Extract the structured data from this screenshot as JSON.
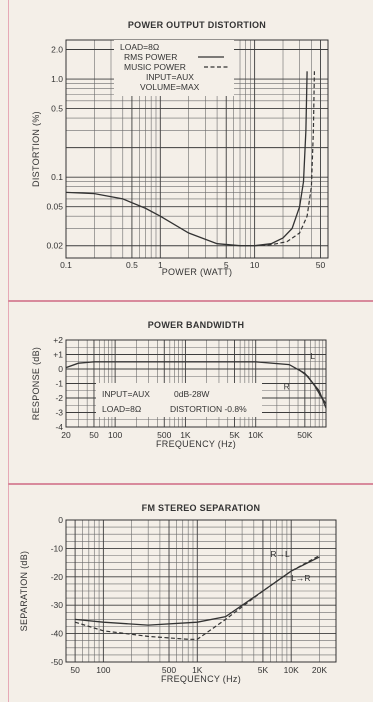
{
  "chart_data": [
    {
      "type": "line",
      "title": "POWER OUTPUT DISTORTION",
      "xlabel": "POWER (WATT)",
      "ylabel": "DISTORTION (%)",
      "x_scale": "log",
      "y_scale": "log",
      "xlim": [
        0.1,
        60
      ],
      "ylim": [
        0.015,
        2.5
      ],
      "x_ticks": [
        {
          "v": 0.1,
          "label": "0.1"
        },
        {
          "v": 0.5,
          "label": "0.5"
        },
        {
          "v": 1,
          "label": "1"
        },
        {
          "v": 5,
          "label": "5"
        },
        {
          "v": 10,
          "label": "10"
        },
        {
          "v": 50,
          "label": "50"
        }
      ],
      "y_ticks": [
        {
          "v": 0.02,
          "label": "0.02"
        },
        {
          "v": 0.05,
          "label": "0.05"
        },
        {
          "v": 0.1,
          "label": "0.1"
        },
        {
          "v": 0.5,
          "label": "0.5"
        },
        {
          "v": 1,
          "label": "1.0"
        },
        {
          "v": 2,
          "label": "2.0"
        }
      ],
      "legend": {
        "position": "top-center",
        "lines": [
          "LOAD=8Ω",
          "RMS POWER",
          "MUSIC POWER",
          "INPUT=AUX",
          "VOLUME=MAX"
        ]
      },
      "series": [
        {
          "name": "RMS POWER",
          "style": "solid",
          "points": [
            [
              0.1,
              0.07
            ],
            [
              0.2,
              0.068
            ],
            [
              0.4,
              0.06
            ],
            [
              0.7,
              0.048
            ],
            [
              1,
              0.04
            ],
            [
              2,
              0.027
            ],
            [
              4,
              0.021
            ],
            [
              7,
              0.02
            ],
            [
              10,
              0.02
            ],
            [
              15,
              0.021
            ],
            [
              20,
              0.024
            ],
            [
              25,
              0.03
            ],
            [
              30,
              0.05
            ],
            [
              33,
              0.09
            ],
            [
              35,
              0.3
            ],
            [
              36,
              1.2
            ]
          ]
        },
        {
          "name": "MUSIC POWER",
          "style": "dashed",
          "points": [
            [
              10,
              0.02
            ],
            [
              15,
              0.0205
            ],
            [
              22,
              0.022
            ],
            [
              30,
              0.027
            ],
            [
              36,
              0.04
            ],
            [
              40,
              0.08
            ],
            [
              42,
              0.3
            ],
            [
              43,
              1.2
            ]
          ]
        }
      ]
    },
    {
      "type": "line",
      "title": "POWER BANDWIDTH",
      "xlabel": "FREQUENCY (Hz)",
      "ylabel": "RESPONSE (dB)",
      "x_scale": "log",
      "xlim": [
        20,
        100000
      ],
      "ylim": [
        -4,
        2
      ],
      "x_ticks": [
        {
          "v": 20,
          "label": "20"
        },
        {
          "v": 50,
          "label": "50"
        },
        {
          "v": 100,
          "label": "100"
        },
        {
          "v": 500,
          "label": "500"
        },
        {
          "v": 1000,
          "label": "1K"
        },
        {
          "v": 5000,
          "label": "5K"
        },
        {
          "v": 10000,
          "label": "10K"
        },
        {
          "v": 50000,
          "label": "50K"
        }
      ],
      "y_ticks": [
        {
          "v": 2,
          "label": "+2"
        },
        {
          "v": 1,
          "label": "+1"
        },
        {
          "v": 0,
          "label": "0"
        },
        {
          "v": -1,
          "label": "-1"
        },
        {
          "v": -2,
          "label": "-2"
        },
        {
          "v": -3,
          "label": "-3"
        },
        {
          "v": -4,
          "label": "-4"
        }
      ],
      "annotations": [
        "INPUT=AUX",
        "0dB-28W",
        "LOAD=8Ω",
        "DISTORTION -0.8%",
        "L",
        "R"
      ],
      "series": [
        {
          "name": "L",
          "style": "solid",
          "points": [
            [
              20,
              0.1
            ],
            [
              30,
              0.4
            ],
            [
              50,
              0.5
            ],
            [
              1000,
              0.5
            ],
            [
              10000,
              0.5
            ],
            [
              30000,
              0.3
            ],
            [
              50000,
              -0.3
            ],
            [
              80000,
              -1.5
            ],
            [
              100000,
              -2.7
            ]
          ]
        },
        {
          "name": "R",
          "style": "solid",
          "points": [
            [
              40000,
              0
            ],
            [
              55000,
              -0.5
            ],
            [
              70000,
              -1.2
            ],
            [
              85000,
              -1.9
            ],
            [
              100000,
              -2.4
            ]
          ]
        }
      ]
    },
    {
      "type": "line",
      "title": "FM STEREO SEPARATION",
      "xlabel": "FREQUENCY (Hz)",
      "ylabel": "SEPARATION (dB)",
      "x_scale": "log",
      "xlim": [
        40,
        30000
      ],
      "ylim": [
        -50,
        0
      ],
      "x_ticks": [
        {
          "v": 50,
          "label": "50"
        },
        {
          "v": 100,
          "label": "100"
        },
        {
          "v": 500,
          "label": "500"
        },
        {
          "v": 1000,
          "label": "1K"
        },
        {
          "v": 5000,
          "label": "5K"
        },
        {
          "v": 10000,
          "label": "10K"
        },
        {
          "v": 20000,
          "label": "20K"
        }
      ],
      "y_ticks": [
        {
          "v": 0,
          "label": "0"
        },
        {
          "v": -10,
          "label": "-10"
        },
        {
          "v": -20,
          "label": "-20"
        },
        {
          "v": -30,
          "label": "-30"
        },
        {
          "v": -40,
          "label": "-40"
        },
        {
          "v": -50,
          "label": "-50"
        }
      ],
      "annotations": [
        "R→L",
        "L→R"
      ],
      "series": [
        {
          "name": "R→L",
          "style": "solid",
          "points": [
            [
              50,
              -35
            ],
            [
              100,
              -36
            ],
            [
              300,
              -37
            ],
            [
              1000,
              -36
            ],
            [
              2000,
              -34
            ],
            [
              5000,
              -25
            ],
            [
              10000,
              -18
            ],
            [
              20000,
              -13
            ]
          ]
        },
        {
          "name": "L→R",
          "style": "dashed",
          "points": [
            [
              50,
              -36
            ],
            [
              100,
              -39
            ],
            [
              300,
              -41
            ],
            [
              800,
              -42
            ],
            [
              1000,
              -42
            ],
            [
              2000,
              -35
            ],
            [
              5000,
              -25
            ],
            [
              10000,
              -18
            ],
            [
              20000,
              -12.5
            ]
          ]
        }
      ]
    }
  ]
}
